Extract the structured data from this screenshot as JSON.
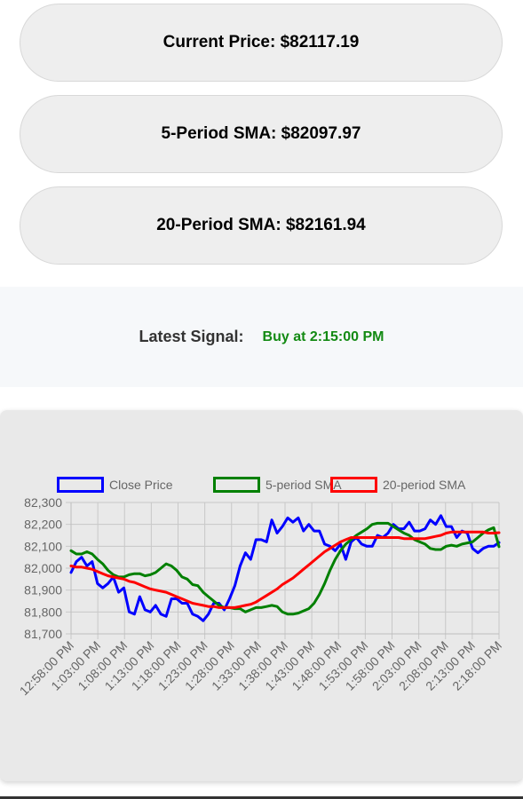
{
  "stats": [
    {
      "label": "Current Price:",
      "value": "$82117.19"
    },
    {
      "label": "5-Period SMA:",
      "value": "$82097.97"
    },
    {
      "label": "20-Period SMA:",
      "value": "$82161.94"
    }
  ],
  "signal": {
    "label": "Latest Signal:",
    "value": "Buy at 2:15:00 PM",
    "color": "#138a13"
  },
  "chart_data": {
    "type": "line",
    "ylim": [
      81700,
      82300
    ],
    "yticks": [
      82300,
      82200,
      82100,
      82000,
      81900,
      81800,
      81700
    ],
    "ytick_labels": [
      "82,300",
      "82,200",
      "82,100",
      "82,000",
      "81,900",
      "81,800",
      "81,700"
    ],
    "xtick_labels": [
      "12:58:00 PM",
      "1:03:00 PM",
      "1:08:00 PM",
      "1:13:00 PM",
      "1:18:00 PM",
      "1:23:00 PM",
      "1:28:00 PM",
      "1:33:00 PM",
      "1:38:00 PM",
      "1:43:00 PM",
      "1:48:00 PM",
      "1:53:00 PM",
      "1:58:00 PM",
      "2:03:00 PM",
      "2:08:00 PM",
      "2:13:00 PM",
      "2:18:00 PM"
    ],
    "x_minutes_start": "12:58:00 PM",
    "grid": true,
    "legend": "top",
    "series": [
      {
        "name": "Close Price",
        "color": "#0000ff",
        "values": [
          81980,
          82030,
          82050,
          82010,
          82030,
          81930,
          81910,
          81930,
          81960,
          81890,
          81910,
          81800,
          81790,
          81870,
          81810,
          81800,
          81830,
          81790,
          81780,
          81860,
          81860,
          81840,
          81840,
          81790,
          81780,
          81760,
          81790,
          81840,
          81840,
          81810,
          81860,
          81920,
          82010,
          82070,
          82040,
          82130,
          82130,
          82120,
          82220,
          82160,
          82190,
          82230,
          82210,
          82230,
          82170,
          82200,
          82170,
          82170,
          82110,
          82100,
          82080,
          82110,
          82040,
          82120,
          82140,
          82110,
          82100,
          82100,
          82150,
          82140,
          82160,
          82200,
          82180,
          82180,
          82210,
          82170,
          82170,
          82180,
          82220,
          82200,
          82240,
          82190,
          82190,
          82140,
          82170,
          82160,
          82090,
          82070,
          82090,
          82100,
          82100,
          82117
        ]
      },
      {
        "name": "5-period SMA",
        "color": "#008000",
        "values": [
          82080,
          82065,
          82065,
          82075,
          82065,
          82040,
          82020,
          81990,
          81970,
          81960,
          81960,
          81970,
          81975,
          81975,
          81965,
          81970,
          81980,
          82000,
          82020,
          82010,
          81990,
          81960,
          81950,
          81925,
          81920,
          81890,
          81870,
          81850,
          81830,
          81820,
          81820,
          81815,
          81815,
          81800,
          81810,
          81820,
          81820,
          81825,
          81830,
          81825,
          81800,
          81790,
          81790,
          81795,
          81805,
          81815,
          81840,
          81880,
          81930,
          81990,
          82040,
          82080,
          82110,
          82130,
          82150,
          82165,
          82180,
          82200,
          82205,
          82205,
          82205,
          82190,
          82175,
          82160,
          82150,
          82130,
          82120,
          82110,
          82090,
          82085,
          82085,
          82100,
          82105,
          82100,
          82110,
          82115,
          82120,
          82140,
          82160,
          82175,
          82185,
          82098
        ]
      },
      {
        "name": "20-period SMA",
        "color": "#ff0000",
        "values": [
          82010,
          82005,
          82005,
          82000,
          81995,
          81985,
          81975,
          81965,
          81960,
          81955,
          81950,
          81940,
          81935,
          81925,
          81915,
          81905,
          81900,
          81895,
          81890,
          81880,
          81870,
          81860,
          81850,
          81840,
          81835,
          81830,
          81825,
          81825,
          81820,
          81820,
          81820,
          81820,
          81825,
          81830,
          81835,
          81845,
          81860,
          81875,
          81890,
          81905,
          81925,
          81940,
          81955,
          81975,
          81995,
          82015,
          82035,
          82055,
          82075,
          82090,
          82105,
          82120,
          82130,
          82140,
          82140,
          82140,
          82140,
          82140,
          82140,
          82140,
          82140,
          82140,
          82140,
          82135,
          82135,
          82135,
          82135,
          82135,
          82140,
          82145,
          82150,
          82160,
          82165,
          82165,
          82165,
          82165,
          82165,
          82165,
          82165,
          82160,
          82160,
          82162
        ]
      }
    ]
  }
}
